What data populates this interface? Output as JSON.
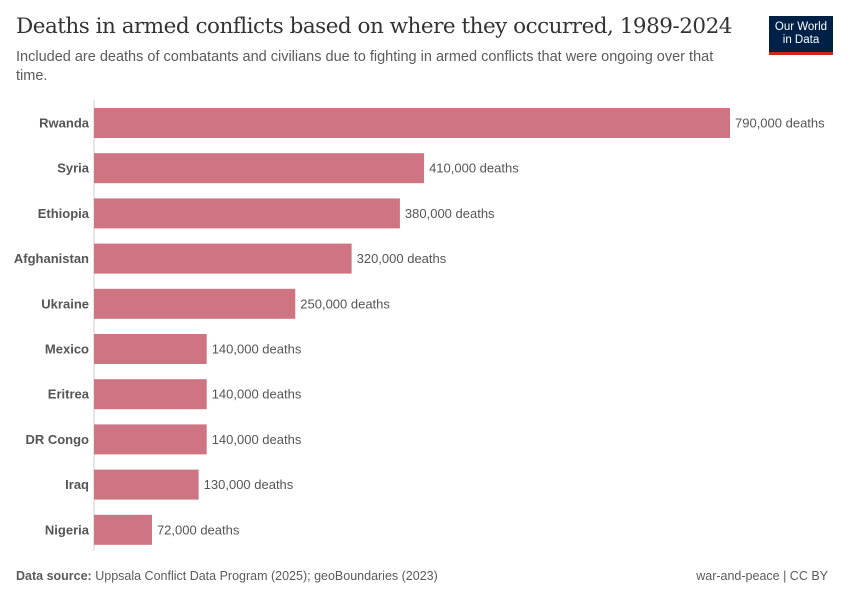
{
  "header": {
    "title": "Deaths in armed conflicts based on where they occurred, 1989-2024",
    "subtitle": "Included are deaths of combatants and civilians due to fighting in armed conflicts that were ongoing over that time.",
    "logo": "Our World in Data",
    "logo_line1": "Our World",
    "logo_line2": "in Data"
  },
  "footer": {
    "source_label": "Data source:",
    "source": "Uppsala Conflict Data Program (2025); geoBoundaries (2023)",
    "license": "war-and-peace | CC BY"
  },
  "colors": {
    "bar": "#cf7483",
    "brand": "#002147",
    "accent": "#ce261e"
  },
  "chart_data": {
    "type": "bar",
    "orientation": "horizontal",
    "categories": [
      "Rwanda",
      "Syria",
      "Ethiopia",
      "Afghanistan",
      "Ukraine",
      "Mexico",
      "Eritrea",
      "DR Congo",
      "Iraq",
      "Nigeria"
    ],
    "values": [
      790000,
      410000,
      380000,
      320000,
      250000,
      140000,
      140000,
      140000,
      130000,
      72000
    ],
    "labels": [
      "790,000 deaths",
      "410,000 deaths",
      "380,000 deaths",
      "320,000 deaths",
      "250,000 deaths",
      "140,000 deaths",
      "140,000 deaths",
      "140,000 deaths",
      "130,000 deaths",
      "72,000 deaths"
    ],
    "unit": "deaths"
  }
}
